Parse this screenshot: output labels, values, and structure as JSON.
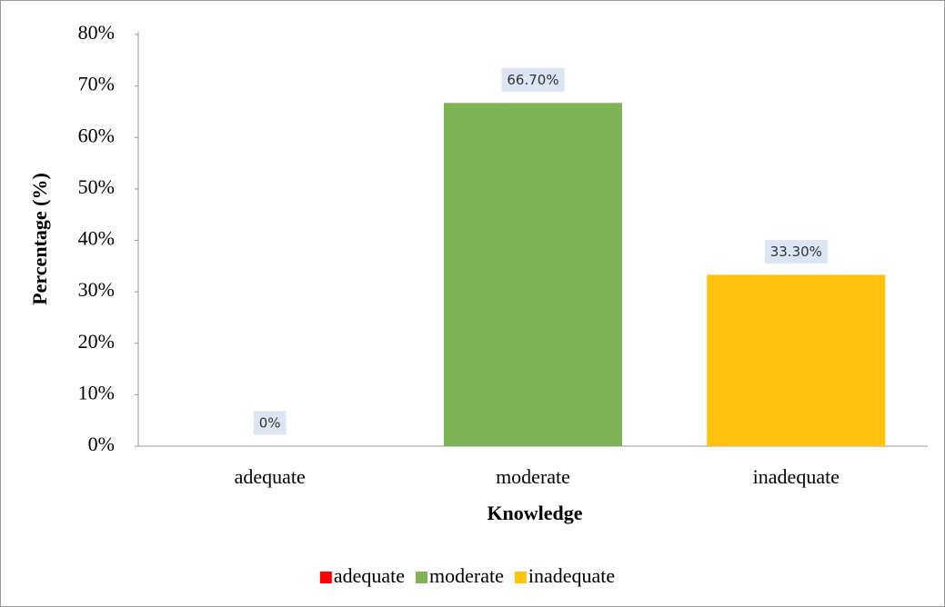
{
  "chart_data": {
    "type": "bar",
    "categories": [
      "adequate",
      "moderate",
      "inadequate"
    ],
    "values": [
      0,
      66.7,
      33.3
    ],
    "value_labels": [
      "0%",
      "66.70%",
      "33.30%"
    ],
    "colors": [
      "#ff0000",
      "#7eb356",
      "#ffc20e"
    ],
    "ylim": [
      0,
      80
    ],
    "yticks": [
      {
        "value": 0,
        "label": "0%"
      },
      {
        "value": 10,
        "label": "10%"
      },
      {
        "value": 20,
        "label": "20%"
      },
      {
        "value": 30,
        "label": "30%"
      },
      {
        "value": 40,
        "label": "40%"
      },
      {
        "value": 50,
        "label": "50%"
      },
      {
        "value": 60,
        "label": "60%"
      },
      {
        "value": 70,
        "label": "70%"
      },
      {
        "value": 80,
        "label": "80%"
      }
    ],
    "y_label": "Percentage (%)",
    "x_label": "Knowledge",
    "legend": "bottom"
  }
}
